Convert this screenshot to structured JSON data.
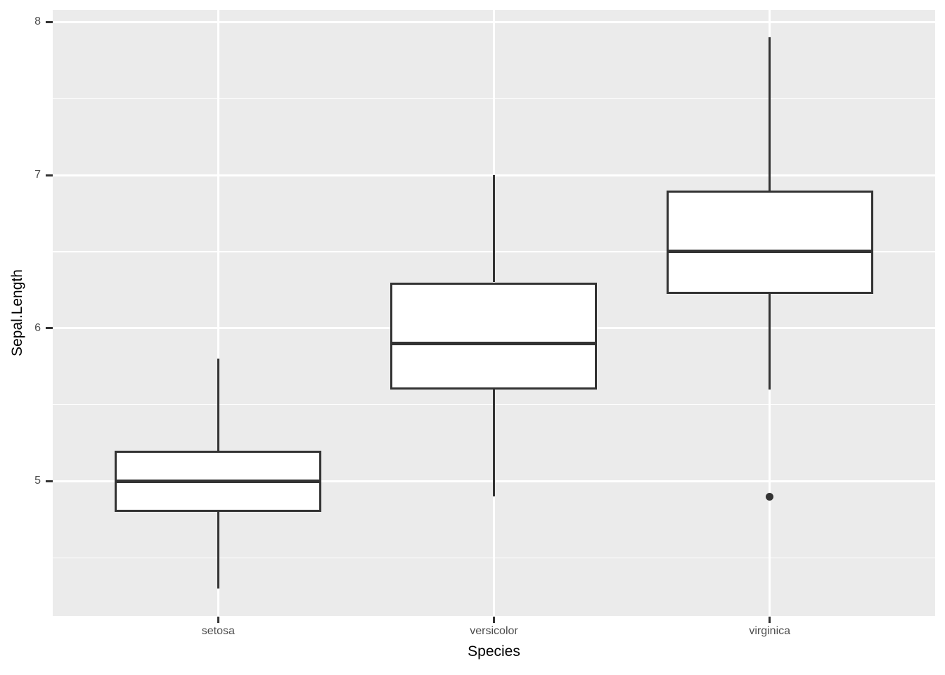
{
  "figure": {
    "background": "#ffffff",
    "panel_background": "#EBEBEB",
    "grid_color": "#FFFFFF",
    "box_outline_color": "#333333",
    "box_fill": "#FFFFFF",
    "tick_mark_color": "#333333",
    "tick_label_color": "#4D4D4D",
    "axis_title_color": "#000000"
  },
  "chart_data": {
    "type": "boxplot",
    "title": "",
    "xlabel": "Species",
    "ylabel": "Sepal.Length",
    "categories": [
      "setosa",
      "versicolor",
      "virginica"
    ],
    "y_ticks": [
      5,
      6,
      7,
      8
    ],
    "y_tick_labels": [
      "5",
      "6",
      "7",
      "8"
    ],
    "y_minor_ticks": [
      4.5,
      5.5,
      6.5,
      7.5
    ],
    "ylim": [
      4.12,
      8.08
    ],
    "grid": "on",
    "legend": "none",
    "series": [
      {
        "category": "setosa",
        "min": 4.3,
        "q1": 4.8,
        "median": 5.0,
        "q3": 5.2,
        "max": 5.8,
        "outliers": []
      },
      {
        "category": "versicolor",
        "min": 4.9,
        "q1": 5.6,
        "median": 5.9,
        "q3": 6.3,
        "max": 7.0,
        "outliers": []
      },
      {
        "category": "virginica",
        "min": 5.6,
        "q1": 6.225,
        "median": 6.5,
        "q3": 6.9,
        "max": 7.9,
        "outliers": [
          4.9
        ]
      }
    ]
  }
}
